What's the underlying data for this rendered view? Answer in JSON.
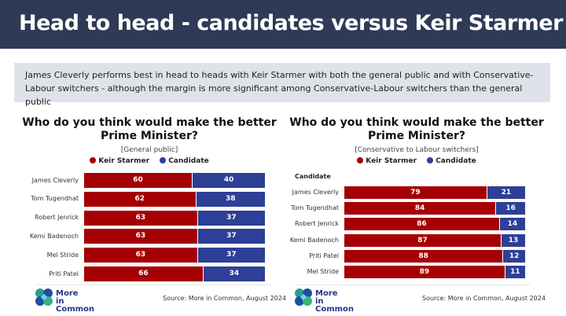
{
  "header": {
    "title": "Head to head - candidates versus Keir Starmer"
  },
  "summary": "James Cleverly performs best in head to heads with Keir Starmer with both the general public and with Conservative-Labour switchers - although the margin is more significant among Conservative-Labour switchers than the general public",
  "colors": {
    "starmer": "#a50104",
    "candidate": "#2d3f96",
    "header": "#2e3a56"
  },
  "chart_data": [
    {
      "type": "bar",
      "stacked": true,
      "orientation": "horizontal",
      "title": "Who do you think would make the better Prime Minister?",
      "subtitle": "[General public]",
      "axis_title": "",
      "categories": [
        "James Cleverly",
        "Tom Tugendhat",
        "Robert Jenrick",
        "Kemi Badenoch",
        "Mel Stride",
        "Priti Patel"
      ],
      "series": [
        {
          "name": "Keir Starmer",
          "values": [
            60,
            62,
            63,
            63,
            63,
            66
          ]
        },
        {
          "name": "Candidate",
          "values": [
            40,
            38,
            37,
            37,
            37,
            34
          ]
        }
      ],
      "legend": "top"
    },
    {
      "type": "bar",
      "stacked": true,
      "orientation": "horizontal",
      "title": "Who do you think would make the better Prime Minister?",
      "subtitle": "[Conservative to Labour switchers]",
      "axis_title": "Candidate",
      "categories": [
        "James Cleverly",
        "Tom Tugendhat",
        "Robert Jenrick",
        "Kemi Badenoch",
        "Priti Patel",
        "Mel Stride"
      ],
      "series": [
        {
          "name": "Keir Starmer",
          "values": [
            79,
            84,
            86,
            87,
            88,
            89
          ]
        },
        {
          "name": "Candidate",
          "values": [
            21,
            16,
            14,
            13,
            12,
            11
          ]
        }
      ],
      "legend": "top"
    }
  ],
  "footer": {
    "logo_text": "More in Common",
    "source": "Source: More in Common, August 2024"
  }
}
